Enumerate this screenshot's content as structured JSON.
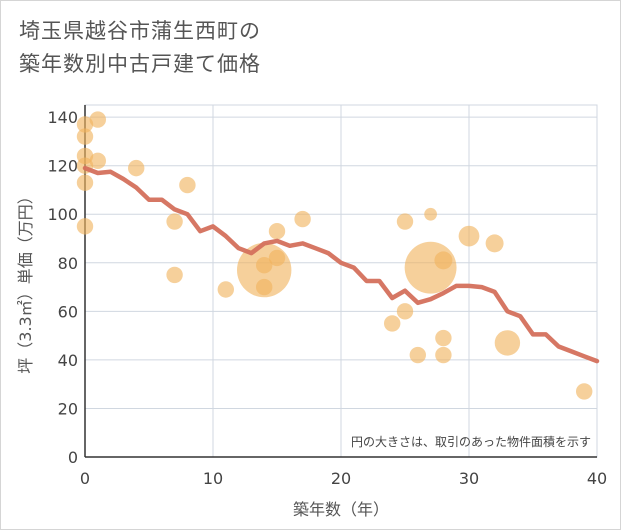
{
  "title_lines": [
    "埼玉県越谷市蒲生西町の",
    "築年数別中古戸建て価格"
  ],
  "chart_data": {
    "type": "scatter",
    "title": "埼玉県越谷市蒲生西町の築年数別中古戸建て価格",
    "xlabel": "築年数（年）",
    "ylabel": "坪（3.3㎡）単価（万円）",
    "xlim": [
      0,
      40
    ],
    "ylim": [
      0,
      145
    ],
    "xticks": [
      0,
      10,
      20,
      30,
      40
    ],
    "yticks": [
      0,
      20,
      40,
      60,
      80,
      100,
      120,
      140
    ],
    "grid": true,
    "note": "円の大きさは、取引のあった物件面積を示す",
    "colors": {
      "bubble": "#f0b35e",
      "line": "#d4705c",
      "grid": "#d0d7e0"
    },
    "bubbles": [
      {
        "x": 0,
        "y": 137,
        "s": 1
      },
      {
        "x": 0,
        "y": 132,
        "s": 1
      },
      {
        "x": 0,
        "y": 124,
        "s": 1
      },
      {
        "x": 0,
        "y": 120,
        "s": 1
      },
      {
        "x": 0,
        "y": 113,
        "s": 1
      },
      {
        "x": 0,
        "y": 95,
        "s": 1
      },
      {
        "x": 1,
        "y": 139,
        "s": 1
      },
      {
        "x": 1,
        "y": 122,
        "s": 1
      },
      {
        "x": 4,
        "y": 119,
        "s": 1
      },
      {
        "x": 7,
        "y": 97,
        "s": 1
      },
      {
        "x": 7,
        "y": 75,
        "s": 1
      },
      {
        "x": 8,
        "y": 112,
        "s": 1
      },
      {
        "x": 11,
        "y": 69,
        "s": 1
      },
      {
        "x": 14,
        "y": 77,
        "s": 11
      },
      {
        "x": 14,
        "y": 79,
        "s": 1
      },
      {
        "x": 14,
        "y": 70,
        "s": 1
      },
      {
        "x": 15,
        "y": 93,
        "s": 1
      },
      {
        "x": 15,
        "y": 82,
        "s": 1
      },
      {
        "x": 17,
        "y": 98,
        "s": 1
      },
      {
        "x": 24,
        "y": 55,
        "s": 1
      },
      {
        "x": 25,
        "y": 97,
        "s": 1
      },
      {
        "x": 25,
        "y": 60,
        "s": 1
      },
      {
        "x": 26,
        "y": 42,
        "s": 1
      },
      {
        "x": 27,
        "y": 100,
        "s": 0.6
      },
      {
        "x": 27,
        "y": 78,
        "s": 10
      },
      {
        "x": 28,
        "y": 81,
        "s": 1.2
      },
      {
        "x": 28,
        "y": 49,
        "s": 1
      },
      {
        "x": 28,
        "y": 42,
        "s": 1
      },
      {
        "x": 30,
        "y": 91,
        "s": 1.6
      },
      {
        "x": 32,
        "y": 88,
        "s": 1.2
      },
      {
        "x": 33,
        "y": 47,
        "s": 2.4
      },
      {
        "x": 39,
        "y": 27,
        "s": 1
      }
    ],
    "trend": {
      "x": [
        0,
        1,
        2,
        3,
        4,
        5,
        6,
        7,
        8,
        9,
        10,
        11,
        12,
        13,
        14,
        15,
        16,
        17,
        18,
        19,
        20,
        21,
        22,
        23,
        24,
        25,
        26,
        27,
        28,
        29,
        30,
        31,
        32,
        33,
        34,
        35,
        36,
        37,
        38,
        39,
        40
      ],
      "y": [
        119,
        117,
        117.5,
        114.5,
        111,
        106,
        106,
        102,
        100,
        93,
        95,
        91,
        86,
        84,
        88,
        89,
        87,
        88,
        86,
        84,
        80,
        78,
        72.5,
        72.5,
        65.5,
        68.5,
        63.5,
        65,
        67.5,
        70.5,
        70.5,
        70,
        68,
        60,
        58,
        50.5,
        50.5,
        45.5,
        43.5,
        41.5,
        39.5
      ]
    }
  }
}
